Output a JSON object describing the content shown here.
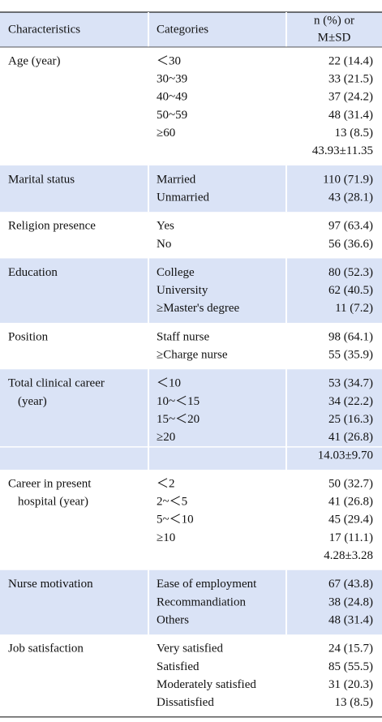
{
  "table": {
    "header": [
      "Characteristics",
      "Categories",
      [
        "n (%) or",
        "M±SD"
      ]
    ],
    "rows": [
      {
        "characteristic": [
          "Age (year)"
        ],
        "categories": [
          "＜30",
          "30~39",
          "40~49",
          "50~59",
          "≥60"
        ],
        "values": [
          "22 (14.4)",
          "33 (21.5)",
          "37 (24.2)",
          "48 (31.4)",
          "13 (8.5)"
        ],
        "summary": "43.93±11.35"
      },
      {
        "characteristic": [
          "Marital status"
        ],
        "categories": [
          "Married",
          "Unmarried"
        ],
        "values": [
          "110 (71.9)",
          "43 (28.1)"
        ]
      },
      {
        "characteristic": [
          "Religion presence"
        ],
        "categories": [
          "Yes",
          "No"
        ],
        "values": [
          "97 (63.4)",
          "56 (36.6)"
        ]
      },
      {
        "characteristic": [
          "Education"
        ],
        "categories": [
          "College",
          "University",
          "≥Master's degree"
        ],
        "values": [
          "80 (52.3)",
          "62 (40.5)",
          "11 (7.2)"
        ]
      },
      {
        "characteristic": [
          "Position"
        ],
        "categories": [
          "Staff nurse",
          "≥Charge nurse"
        ],
        "values": [
          "98 (64.1)",
          "55 (35.9)"
        ]
      },
      {
        "characteristic": [
          "Total clinical career",
          "(year)"
        ],
        "categories": [
          "＜10",
          "10~＜15",
          "15~＜20",
          "≥20"
        ],
        "values": [
          "53 (34.7)",
          "34 (22.2)",
          "25 (16.3)",
          "41 (26.8)"
        ],
        "summary": "14.03±9.70"
      },
      {
        "characteristic": [
          "Career in present",
          "hospital (year)"
        ],
        "categories": [
          "＜2",
          "2~＜5",
          "5~＜10",
          "≥10"
        ],
        "values": [
          "50 (32.7)",
          "41 (26.8)",
          "45 (29.4)",
          "17 (11.1)"
        ],
        "summary": "4.28±3.28"
      },
      {
        "characteristic": [
          "Nurse motivation"
        ],
        "categories": [
          "Ease of employment",
          "Recommandiation",
          "Others"
        ],
        "values": [
          "67 (43.8)",
          "38 (24.8)",
          "48 (31.4)"
        ]
      },
      {
        "characteristic": [
          "Job satisfaction"
        ],
        "categories": [
          "Very satisfied",
          "Satisfied",
          "Moderately satisfied",
          "Dissatisfied"
        ],
        "values": [
          "24 (15.7)",
          "85 (55.5)",
          "31 (20.3)",
          "13 (8.5)"
        ]
      }
    ]
  }
}
